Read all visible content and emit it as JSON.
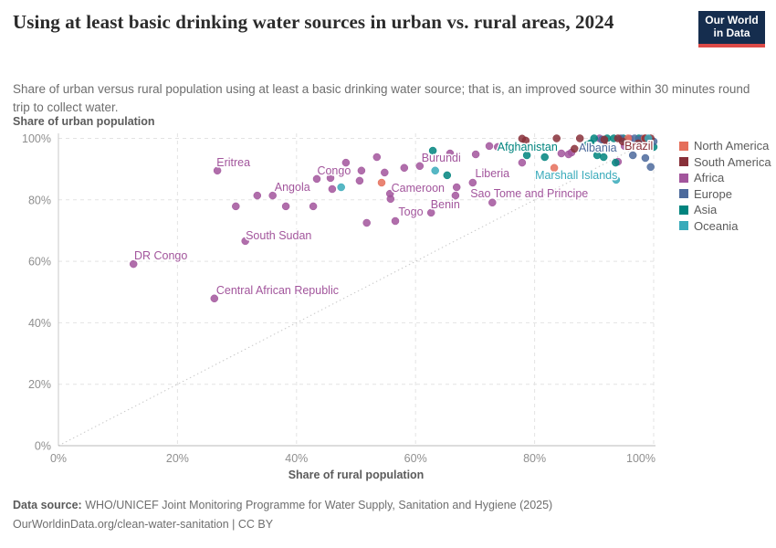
{
  "header": {
    "title": "Using at least basic drinking water sources in urban vs. rural areas, 2024",
    "logo_line1": "Our World",
    "logo_line2": "in Data",
    "subtitle": "Share of urban versus rural population using at least a basic drinking water source; that is, an improved source within 30 minutes round trip to collect water."
  },
  "chart_data": {
    "type": "scatter",
    "title": "Using at least basic drinking water sources in urban vs. rural areas, 2024",
    "xlabel": "Share of rural population",
    "ylabel": "Share of urban population",
    "xlim": [
      0,
      100
    ],
    "ylim": [
      0,
      100
    ],
    "xticks": [
      0,
      20,
      40,
      60,
      80,
      100
    ],
    "yticks": [
      0,
      20,
      40,
      60,
      80,
      100
    ],
    "tick_suffix": "%",
    "grid": true,
    "diagonal_line": true,
    "legend_position": "right",
    "legend": [
      {
        "label": "North America",
        "color": "#e56e5a"
      },
      {
        "label": "South America",
        "color": "#883039"
      },
      {
        "label": "Africa",
        "color": "#a2559c"
      },
      {
        "label": "Europe",
        "color": "#4c6a9c"
      },
      {
        "label": "Asia",
        "color": "#00847e"
      },
      {
        "label": "Oceania",
        "color": "#38aaba"
      }
    ],
    "series": [
      {
        "name": "Africa",
        "color": "#a2559c",
        "points": [
          [
            12.6,
            59.1
          ],
          [
            26.2,
            47.9
          ],
          [
            26.7,
            89.5
          ],
          [
            31.4,
            66.6
          ],
          [
            29.8,
            77.9
          ],
          [
            33.4,
            81.4
          ],
          [
            36,
            81.4
          ],
          [
            38.2,
            77.9
          ],
          [
            42.8,
            77.9
          ],
          [
            43.4,
            86.8
          ],
          [
            45.7,
            87.1
          ],
          [
            46,
            83.5
          ],
          [
            48.3,
            92.1
          ],
          [
            50.9,
            89.5
          ],
          [
            50.6,
            86.2
          ],
          [
            53.5,
            93.9
          ],
          [
            54.8,
            88.9
          ],
          [
            58.1,
            90.4
          ],
          [
            55.7,
            82
          ],
          [
            55.8,
            80.3
          ],
          [
            56.6,
            73.1
          ],
          [
            51.8,
            72.5
          ],
          [
            60.7,
            91
          ],
          [
            65.8,
            95.1
          ],
          [
            70.1,
            94.8
          ],
          [
            72.4,
            97.5
          ],
          [
            73.8,
            97.2
          ],
          [
            69.6,
            85.6
          ],
          [
            66.9,
            84.1
          ],
          [
            66.7,
            81.4
          ],
          [
            72.9,
            79.1
          ],
          [
            62.6,
            75.8
          ],
          [
            77.9,
            92.1
          ],
          [
            84.5,
            95.1
          ],
          [
            85.7,
            94.8
          ],
          [
            86.2,
            95.4
          ],
          [
            94,
            92.4
          ],
          [
            90.9,
            100
          ],
          [
            96,
            99.9
          ],
          [
            95.1,
            97.5
          ]
        ]
      },
      {
        "name": "Asia",
        "color": "#00847e",
        "points": [
          [
            62.9,
            96
          ],
          [
            65.3,
            88
          ],
          [
            78.7,
            94.5
          ],
          [
            81.7,
            93.9
          ],
          [
            88.8,
            97.8
          ],
          [
            89.4,
            98.4
          ],
          [
            90,
            100
          ],
          [
            92.2,
            100
          ],
          [
            93.3,
            100
          ],
          [
            94.9,
            100
          ],
          [
            97.5,
            100
          ],
          [
            100,
            97.2
          ],
          [
            91.6,
            93.9
          ],
          [
            90.5,
            94.5
          ],
          [
            93.6,
            92.1
          ]
        ]
      },
      {
        "name": "Europe",
        "color": "#4c6a9c",
        "points": [
          [
            96.5,
            94.5
          ],
          [
            98.6,
            93.6
          ],
          [
            99.5,
            90.7
          ],
          [
            98,
            99.9
          ],
          [
            96.8,
            100
          ],
          [
            100,
            99
          ],
          [
            94.5,
            100
          ],
          [
            91.3,
            99.6
          ]
        ]
      },
      {
        "name": "North America",
        "color": "#e56e5a",
        "points": [
          [
            54.3,
            85.6
          ],
          [
            83.3,
            90.4
          ],
          [
            98.5,
            100
          ],
          [
            95.7,
            100
          ]
        ]
      },
      {
        "name": "South America",
        "color": "#883039",
        "points": [
          [
            77.9,
            99.9
          ],
          [
            78.5,
            99.3
          ],
          [
            83.7,
            100
          ],
          [
            87.6,
            100
          ],
          [
            91.7,
            99.6
          ],
          [
            94,
            100
          ],
          [
            94.8,
            99
          ],
          [
            98.6,
            100
          ],
          [
            99.5,
            100
          ],
          [
            86.7,
            96.6
          ],
          [
            97.4,
            98.4
          ],
          [
            92.2,
            97.8
          ]
        ]
      },
      {
        "name": "Oceania",
        "color": "#38aaba",
        "points": [
          [
            47.5,
            84.1
          ],
          [
            63.3,
            89.5
          ],
          [
            93.7,
            86.5
          ],
          [
            99.1,
            100
          ]
        ]
      }
    ],
    "point_labels": [
      {
        "text": "Eritrea",
        "x": 29.4,
        "y": 92.1,
        "series": "Africa"
      },
      {
        "text": "DR Congo",
        "x": 17.2,
        "y": 61.8,
        "series": "Africa"
      },
      {
        "text": "Central African Republic",
        "x": 36.8,
        "y": 50.5,
        "series": "Africa"
      },
      {
        "text": "South Sudan",
        "x": 37,
        "y": 68.4,
        "series": "Africa"
      },
      {
        "text": "Angola",
        "x": 39.3,
        "y": 84.1,
        "series": "Africa"
      },
      {
        "text": "Congo",
        "x": 46.3,
        "y": 89.5,
        "series": "Africa"
      },
      {
        "text": "Togo",
        "x": 59.2,
        "y": 76.1,
        "series": "Africa"
      },
      {
        "text": "Benin",
        "x": 65,
        "y": 78.5,
        "series": "Africa"
      },
      {
        "text": "Cameroon",
        "x": 60.4,
        "y": 83.8,
        "series": "Africa"
      },
      {
        "text": "Burundi",
        "x": 64.3,
        "y": 93.6,
        "series": "Africa"
      },
      {
        "text": "Liberia",
        "x": 72.9,
        "y": 88.6,
        "series": "Africa"
      },
      {
        "text": "Sao Tome and Principe",
        "x": 79.1,
        "y": 82,
        "series": "Africa"
      },
      {
        "text": "Afghanistan",
        "x": 78.8,
        "y": 97.2,
        "series": "Asia"
      },
      {
        "text": "Marshall Islands",
        "x": 87,
        "y": 88,
        "series": "Oceania"
      },
      {
        "text": "Albania",
        "x": 90.6,
        "y": 96.9,
        "series": "Europe"
      },
      {
        "text": "Brazil",
        "x": 97.5,
        "y": 97.5,
        "series": "South America"
      }
    ]
  },
  "footer": {
    "source_label": "Data source:",
    "source_text": " WHO/UNICEF Joint Monitoring Programme for Water Supply, Sanitation and Hygiene (2025)",
    "link_text": "OurWorldinData.org/clean-water-sanitation | CC BY"
  }
}
